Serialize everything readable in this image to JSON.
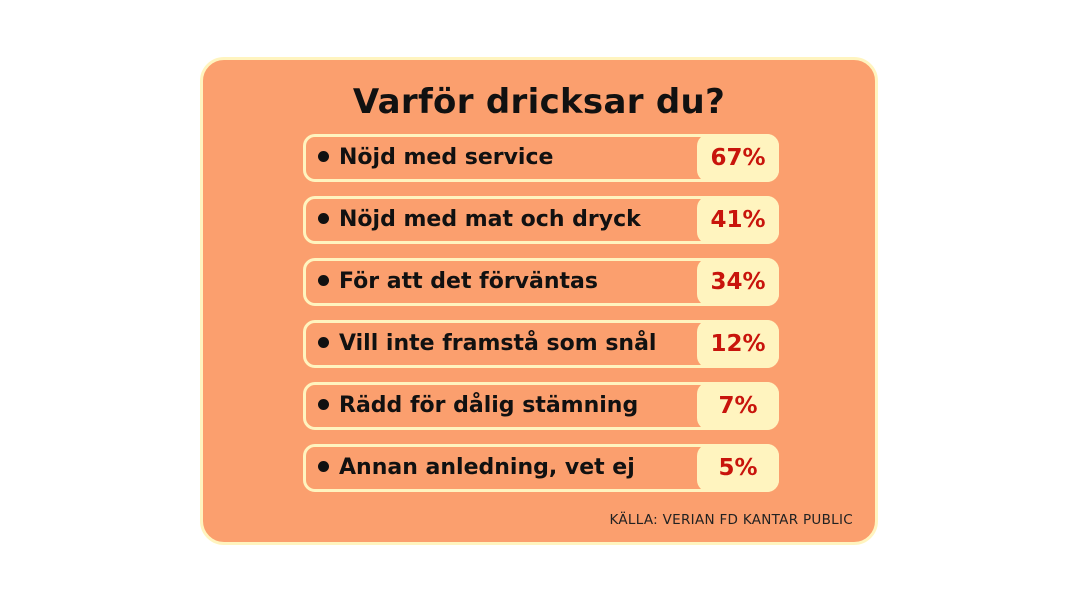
{
  "chart_data": {
    "type": "table",
    "title": "Varför dricksar du?",
    "categories": [
      "Nöjd med service",
      "Nöjd med mat och dryck",
      "För att det förväntas",
      "Vill inte framstå som snål",
      "Rädd för dålig stämning",
      "Annan anledning, vet ej"
    ],
    "values": [
      67,
      41,
      34,
      12,
      7,
      5
    ],
    "labels": [
      "67%",
      "41%",
      "34%",
      "12%",
      "7%",
      "5%"
    ],
    "source": "KÄLLA: VERIAN FD KANTAR PUBLIC"
  },
  "colors": {
    "background": "#fb9f6e",
    "border": "#fff4bf",
    "percent_text": "#c8140c",
    "text": "#111111"
  }
}
